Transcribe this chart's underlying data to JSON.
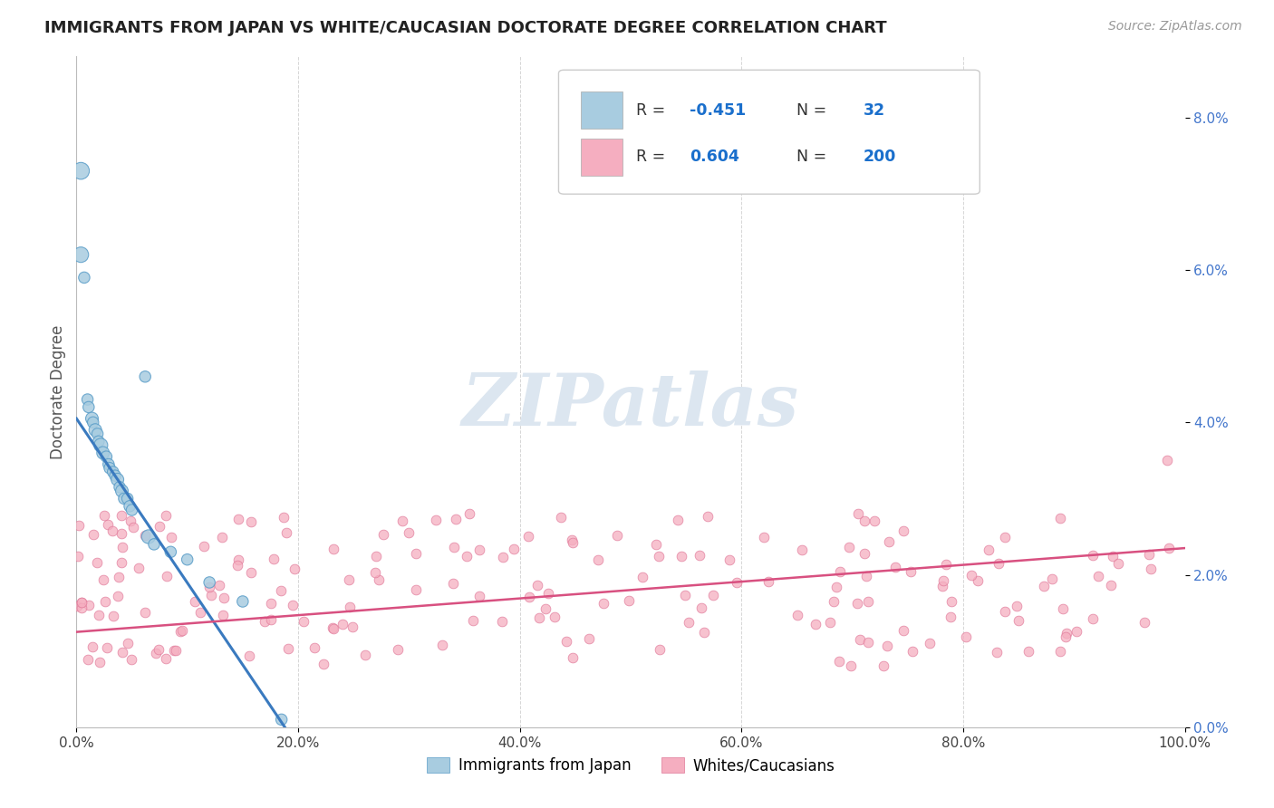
{
  "title": "IMMIGRANTS FROM JAPAN VS WHITE/CAUCASIAN DOCTORATE DEGREE CORRELATION CHART",
  "source": "Source: ZipAtlas.com",
  "ylabel": "Doctorate Degree",
  "right_yticks": [
    "8.0%",
    "6.0%",
    "4.0%",
    "2.0%",
    "0.0%"
  ],
  "right_ytick_vals": [
    8.0,
    6.0,
    4.0,
    2.0,
    0.0
  ],
  "xlim": [
    0.0,
    100.0
  ],
  "ylim": [
    0.0,
    8.8
  ],
  "blue_color": "#a8cce0",
  "pink_color": "#f5aec0",
  "blue_edge_color": "#5a9dc8",
  "pink_edge_color": "#e07898",
  "blue_line_color": "#3a7abf",
  "pink_line_color": "#d85080",
  "blue_scatter_x": [
    0.4,
    0.4,
    0.7,
    1.0,
    1.1,
    1.4,
    1.5,
    1.7,
    1.9,
    2.0,
    2.2,
    2.4,
    2.7,
    2.9,
    3.0,
    3.3,
    3.5,
    3.7,
    3.9,
    4.1,
    4.3,
    4.6,
    4.8,
    5.0,
    6.2,
    6.5,
    7.0,
    8.5,
    10.0,
    12.0,
    15.0,
    18.5
  ],
  "blue_scatter_y": [
    7.3,
    6.2,
    5.9,
    4.3,
    4.2,
    4.05,
    4.0,
    3.9,
    3.85,
    3.75,
    3.7,
    3.6,
    3.55,
    3.45,
    3.4,
    3.35,
    3.3,
    3.25,
    3.15,
    3.1,
    3.0,
    3.0,
    2.9,
    2.85,
    4.6,
    2.5,
    2.4,
    2.3,
    2.2,
    1.9,
    1.65,
    0.1
  ],
  "blue_scatter_sizes": [
    180,
    150,
    80,
    80,
    80,
    100,
    80,
    100,
    80,
    80,
    120,
    100,
    80,
    80,
    80,
    80,
    80,
    100,
    80,
    100,
    80,
    80,
    80,
    80,
    80,
    120,
    80,
    80,
    80,
    80,
    80,
    80
  ],
  "pink_spread_seed": 99,
  "grid_color": "#cccccc",
  "bg_color": "#ffffff",
  "title_color": "#222222",
  "axis_label_color": "#555555",
  "watermark_text": "ZIPatlas",
  "watermark_color": "#dce6f0",
  "xtick_positions": [
    0.0,
    20.0,
    40.0,
    60.0,
    80.0,
    100.0
  ],
  "xtick_labels": [
    "0.0%",
    "20.0%",
    "40.0%",
    "60.0%",
    "80.0%",
    "100.0%"
  ],
  "legend_bottom_labels": [
    "Immigrants from Japan",
    "Whites/Caucasians"
  ],
  "blue_trend_x": [
    0.0,
    18.8
  ],
  "blue_trend_y": [
    4.05,
    0.0
  ],
  "pink_trend_x": [
    0.0,
    100.0
  ],
  "pink_trend_y": [
    1.25,
    2.35
  ],
  "legend_r1_val": "-0.451",
  "legend_n1_val": "32",
  "legend_r2_val": "0.604",
  "legend_n2_val": "200",
  "legend_text_color": "#333333",
  "legend_val_color": "#1a6fcc"
}
